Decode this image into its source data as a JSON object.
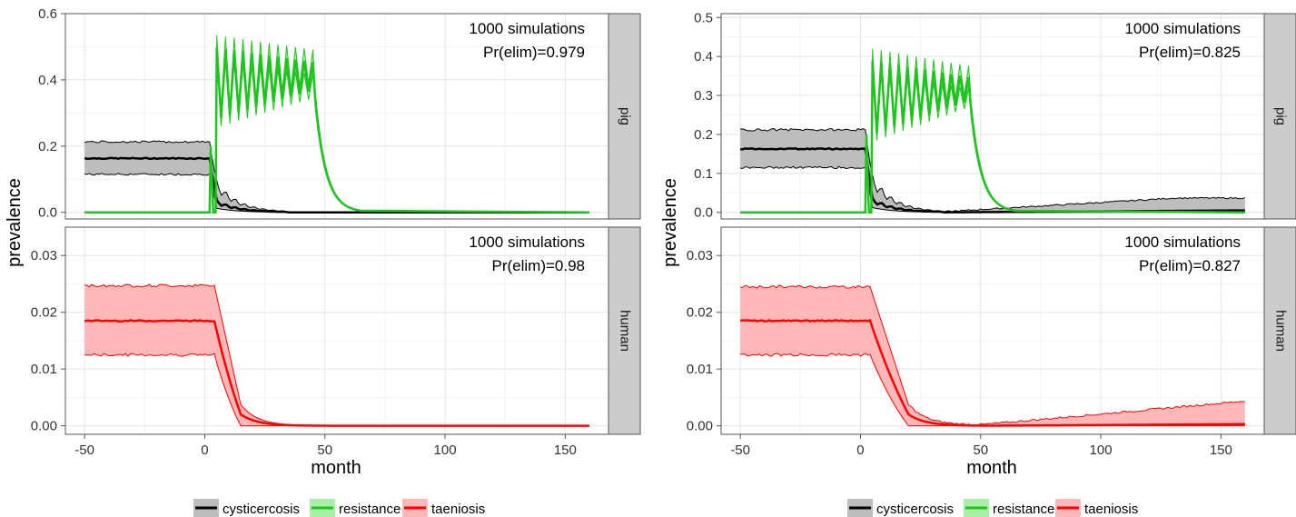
{
  "figure": {
    "y_axis_label": "prevalence",
    "x_axis_label": "month",
    "legend": [
      {
        "label": "cysticercosis",
        "color": "#000000",
        "fill": "#bdbdbd"
      },
      {
        "label": "resistance",
        "color": "#1fc41f",
        "fill": "#a8f0a8"
      },
      {
        "label": "taeniosis",
        "color": "#ff0000",
        "fill": "#ffb8b8"
      }
    ]
  },
  "chart_data": [
    {
      "type": "line",
      "panel": "left-top",
      "facet_label": "pig",
      "annotation": [
        "1000 simulations",
        "Pr(elim)=0.979"
      ],
      "xlabel": "month",
      "ylabel": "prevalence",
      "xlim": [
        -58,
        168
      ],
      "ylim": [
        -0.02,
        0.6
      ],
      "x_ticks": [
        -50,
        0,
        50,
        100,
        150
      ],
      "y_ticks": [
        "0.0",
        "0.2",
        "0.4",
        "0.6"
      ],
      "grid": true,
      "series": [
        {
          "name": "cysticercosis",
          "mean_level": 0.163,
          "low_level": 0.115,
          "high_level": 0.213,
          "post_drop_level": 0.05,
          "post_low": 0.03,
          "post_high": 0.08,
          "end_mean": 0.0,
          "end_high": 0.001
        },
        {
          "name": "resistance",
          "start_month": 2,
          "plateau_high": 0.535,
          "plateau_low": 0.31,
          "cycles": 11,
          "end_month": 45,
          "decay_to_zero_month": 60
        }
      ]
    },
    {
      "type": "line",
      "panel": "left-bottom",
      "facet_label": "human",
      "annotation": [
        "1000 simulations",
        "Pr(elim)=0.98"
      ],
      "xlabel": "month",
      "ylabel": "prevalence",
      "xlim": [
        -58,
        168
      ],
      "ylim": [
        -0.0015,
        0.035
      ],
      "x_ticks": [
        -50,
        0,
        50,
        100,
        150
      ],
      "x_tick_labels": [
        "-50",
        "0",
        "50",
        "100",
        "150"
      ],
      "y_ticks": [
        "0.00",
        "0.01",
        "0.02",
        "0.03"
      ],
      "grid": true,
      "series": [
        {
          "name": "taeniosis",
          "mean_level": 0.0185,
          "low_level": 0.0125,
          "high_level": 0.0247,
          "decline_start": 4,
          "decline_end": 15,
          "end_mean": 0.0,
          "end_high": 0.0
        }
      ]
    },
    {
      "type": "line",
      "panel": "right-top",
      "facet_label": "pig",
      "annotation": [
        "1000 simulations",
        "Pr(elim)=0.825"
      ],
      "xlabel": "month",
      "ylabel": "prevalence",
      "xlim": [
        -58,
        168
      ],
      "ylim": [
        -0.017,
        0.51
      ],
      "x_ticks": [
        -50,
        0,
        50,
        100,
        150
      ],
      "y_ticks": [
        "0.0",
        "0.1",
        "0.2",
        "0.3",
        "0.4",
        "0.5"
      ],
      "grid": true,
      "series": [
        {
          "name": "cysticercosis",
          "mean_level": 0.163,
          "low_level": 0.115,
          "high_level": 0.212,
          "post_drop_level": 0.05,
          "post_low": 0.03,
          "post_high": 0.08,
          "end_mean": 0.005,
          "end_high": 0.035
        },
        {
          "name": "resistance",
          "start_month": 2,
          "plateau_high": 0.42,
          "plateau_low": 0.22,
          "cycles": 11,
          "end_month": 45,
          "decay_to_zero_month": 60
        }
      ]
    },
    {
      "type": "line",
      "panel": "right-bottom",
      "facet_label": "human",
      "annotation": [
        "1000 simulations",
        "Pr(elim)=0.827"
      ],
      "xlabel": "month",
      "ylabel": "prevalence",
      "xlim": [
        -58,
        168
      ],
      "ylim": [
        -0.0015,
        0.035
      ],
      "x_ticks": [
        -50,
        0,
        50,
        100,
        150
      ],
      "x_tick_labels": [
        "-50",
        "0",
        "50",
        "100",
        "150"
      ],
      "y_ticks": [
        "0.00",
        "0.01",
        "0.02",
        "0.03"
      ],
      "grid": true,
      "series": [
        {
          "name": "taeniosis",
          "mean_level": 0.0185,
          "low_level": 0.0125,
          "high_level": 0.0245,
          "decline_start": 4,
          "decline_end": 20,
          "end_mean": 0.0003,
          "end_high": 0.0042
        }
      ]
    }
  ]
}
